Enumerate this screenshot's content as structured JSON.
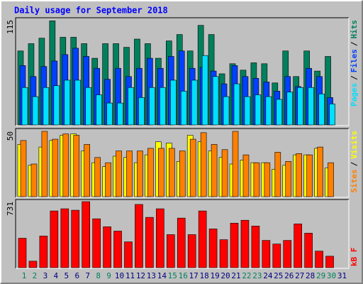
{
  "chart_data": {
    "type": "bar",
    "title": "Daily usage for September 2018",
    "categories": [
      "1",
      "2",
      "3",
      "4",
      "5",
      "6",
      "7",
      "8",
      "9",
      "10",
      "11",
      "12",
      "13",
      "14",
      "15",
      "16",
      "17",
      "18",
      "19",
      "20",
      "21",
      "22",
      "23",
      "24",
      "25",
      "26",
      "27",
      "28",
      "29",
      "30",
      "31"
    ],
    "category_colors": [
      "#00805c",
      "#00805c",
      "#000080",
      "#000080",
      "#000080",
      "#000080",
      "#000080",
      "#00805c",
      "#00805c",
      "#000080",
      "#000080",
      "#000080",
      "#000080",
      "#000080",
      "#00805c",
      "#00805c",
      "#000080",
      "#000080",
      "#000080",
      "#000080",
      "#000080",
      "#00805c",
      "#00805c",
      "#000080",
      "#000080",
      "#000080",
      "#000080",
      "#000080",
      "#00805c",
      "#00805c",
      "#000080"
    ],
    "legend_separator": "/",
    "panels": [
      {
        "ylim": [
          0,
          115
        ],
        "yticks": [
          115
        ],
        "series": [
          {
            "name": "Pages",
            "color": "#00e0ff",
            "values": [
              41,
              31,
              41,
              43,
              49,
              49,
              41,
              33,
              24,
              24,
              41,
              30,
              41,
              41,
              49,
              37,
              49,
              76,
              53,
              31,
              45,
              31,
              33,
              31,
              28,
              36,
              41,
              41,
              34,
              23,
              null
            ]
          },
          {
            "name": "Files",
            "color": "#0040ff",
            "values": [
              65,
              53,
              64,
              70,
              77,
              84,
              75,
              62,
              50,
              62,
              53,
              62,
              73,
              62,
              75,
              81,
              62,
              63,
              59,
              45,
              65,
              53,
              51,
              47,
              37,
              53,
              42,
              62,
              53,
              30,
              null
            ]
          },
          {
            "name": "Hits",
            "color": "#00805c",
            "values": [
              81,
              89,
              95,
              114,
              96,
              96,
              89,
              73,
              89,
              89,
              85,
              94,
              89,
              73,
              92,
              99,
              81,
              109,
              99,
              56,
              67,
              60,
              68,
              67,
              46,
              81,
              53,
              81,
              59,
              75,
              null
            ]
          }
        ]
      },
      {
        "ylim": [
          0,
          50
        ],
        "yticks": [
          50
        ],
        "series": [
          {
            "name": "Sites",
            "color": "#ff8000",
            "values": [
              43,
              25,
              50,
              44,
              48,
              47,
              40,
              30,
              26,
              35,
              35,
              35,
              37,
              37,
              37,
              35,
              44,
              49,
              40,
              36,
              50,
              32,
              26,
              26,
              34,
              27,
              33,
              32,
              38,
              26,
              null
            ]
          },
          {
            "name": "Visits",
            "color": "#ffff00",
            "values": [
              40,
              24,
              38,
              43,
              47,
              48,
              35,
              26,
              23,
              31,
              30,
              26,
              32,
              42,
              41,
              27,
              47,
              42,
              35,
              30,
              25,
              28,
              26,
              26,
              21,
              24,
              32,
              32,
              37,
              22,
              null
            ]
          }
        ]
      },
      {
        "ylim": [
          0,
          731
        ],
        "yticks": [
          731
        ],
        "series": [
          {
            "name": "kB F",
            "color": "#ff0000",
            "values": [
              326,
              72,
              350,
              628,
              652,
              636,
              731,
              541,
              453,
              405,
              286,
              700,
              557,
              652,
              366,
              549,
              366,
              628,
              429,
              310,
              493,
              525,
              461,
              302,
              262,
              302,
              485,
              382,
              183,
              127,
              null
            ]
          }
        ]
      }
    ]
  }
}
